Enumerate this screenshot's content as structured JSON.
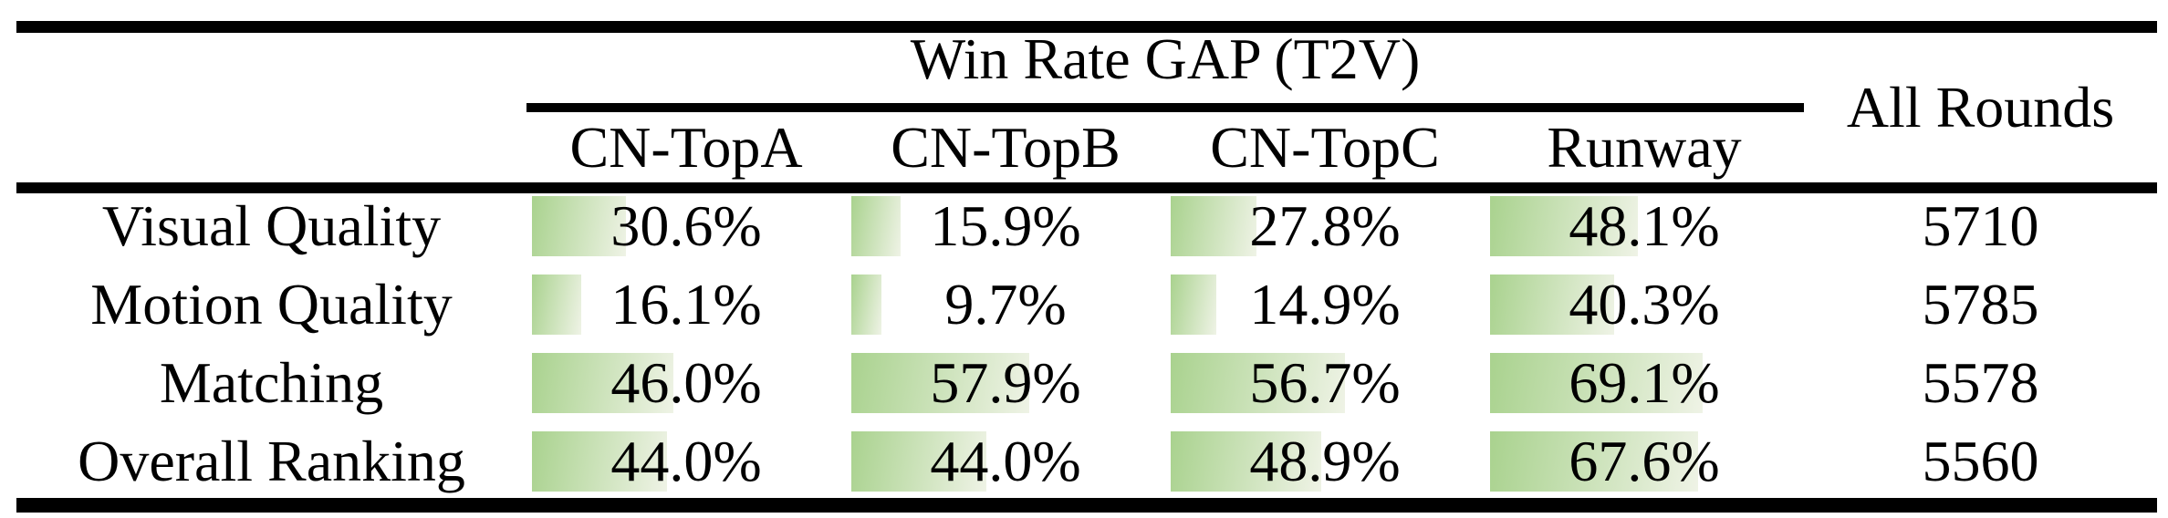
{
  "table": {
    "group_header": "Win Rate GAP (T2V)",
    "all_rounds_header": "All Rounds",
    "columns": [
      "CN-TopA",
      "CN-TopB",
      "CN-TopC",
      "Runway"
    ],
    "rows": [
      {
        "label": "Visual Quality",
        "pcts": [
          "30.6%",
          "15.9%",
          "27.8%",
          "48.1%"
        ],
        "all_rounds": "5710"
      },
      {
        "label": "Motion Quality",
        "pcts": [
          "16.1%",
          "9.7%",
          "14.9%",
          "40.3%"
        ],
        "all_rounds": "5785"
      },
      {
        "label": "Matching",
        "pcts": [
          "46.0%",
          "57.9%",
          "56.7%",
          "69.1%"
        ],
        "all_rounds": "5578"
      },
      {
        "label": "Overall Ranking",
        "pcts": [
          "44.0%",
          "44.0%",
          "48.9%",
          "67.6%"
        ],
        "all_rounds": "5560"
      }
    ],
    "colors": {
      "bar_gradient_start": "#a9d28e",
      "bar_gradient_end": "#eff3e6",
      "rule": "#000000",
      "text": "#000000",
      "background": "#ffffff"
    }
  },
  "chart_data": {
    "type": "table",
    "title": "Win Rate GAP (T2V)",
    "categories": [
      "CN-TopA",
      "CN-TopB",
      "CN-TopC",
      "Runway"
    ],
    "series": [
      {
        "name": "Visual Quality",
        "values": [
          30.6,
          15.9,
          27.8,
          48.1
        ]
      },
      {
        "name": "Motion Quality",
        "values": [
          16.1,
          9.7,
          14.9,
          40.3
        ]
      },
      {
        "name": "Matching",
        "values": [
          46.0,
          57.9,
          56.7,
          69.1
        ]
      },
      {
        "name": "Overall Ranking",
        "values": [
          44.0,
          44.0,
          48.9,
          67.6
        ]
      }
    ],
    "extra_column": {
      "label": "All Rounds",
      "values": [
        5710,
        5785,
        5578,
        5560
      ]
    },
    "unit": "%",
    "value_range": [
      0,
      100
    ],
    "layout_hint": "in-cell horizontal green gradient bars, width proportional to percentage on a 0-100 scale"
  }
}
